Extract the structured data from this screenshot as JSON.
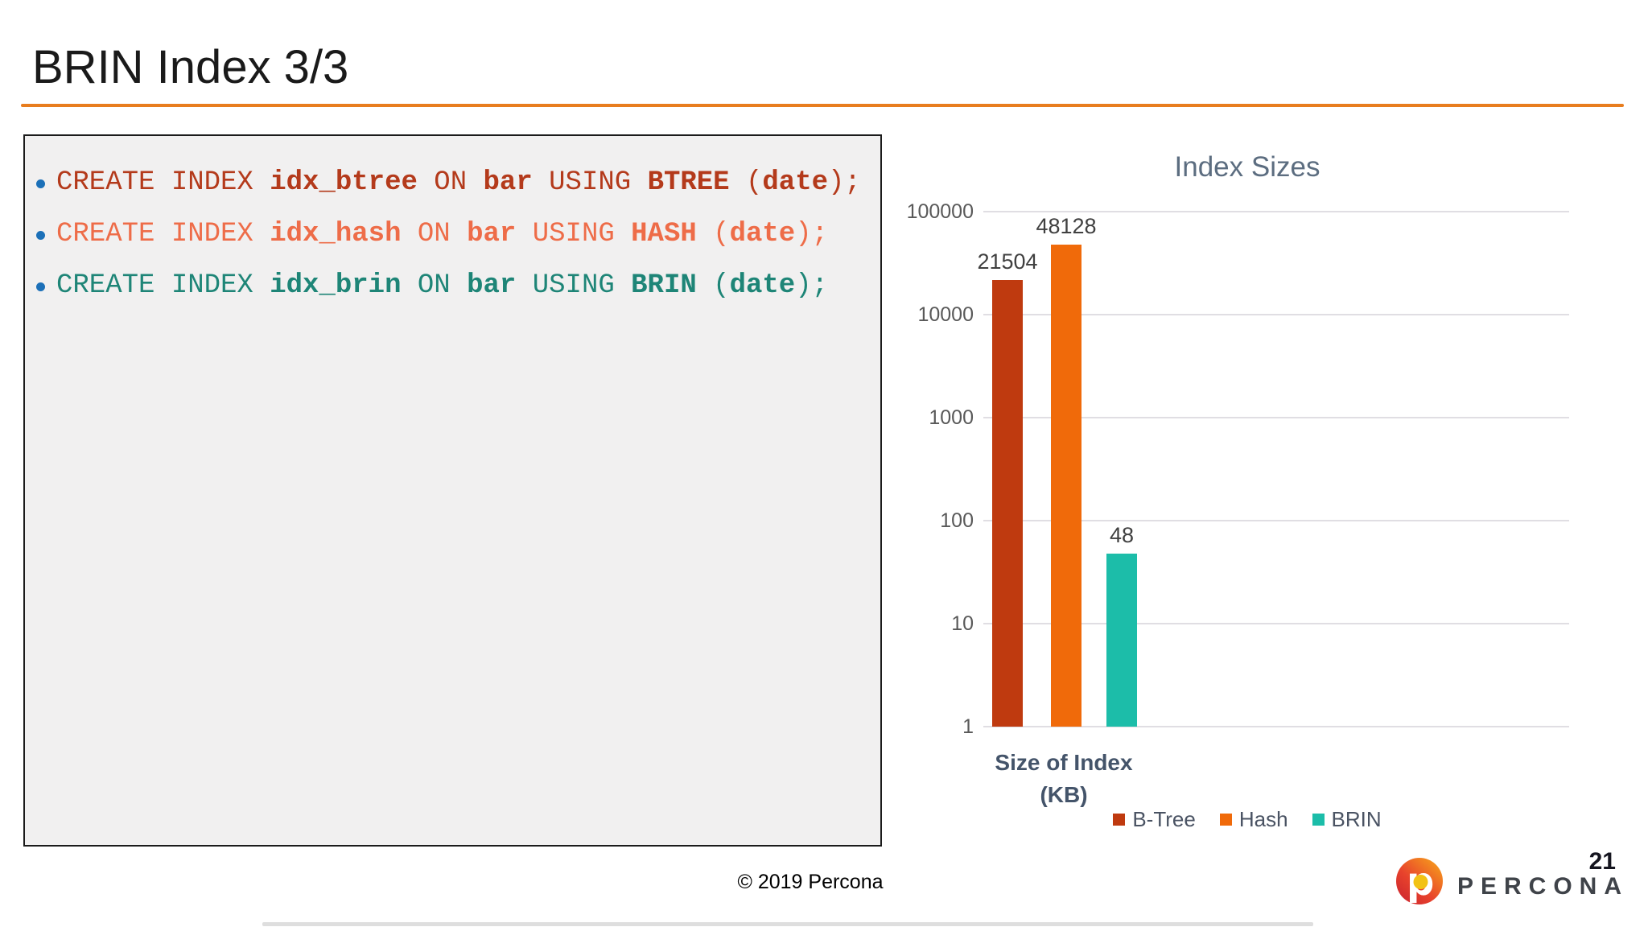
{
  "slide": {
    "title": "BRIN Index 3/3",
    "accent_color": "#E87D1E",
    "copyright": "© 2019 Percona",
    "page_number": "21"
  },
  "code_box": {
    "bullet_color": "#1C70B8",
    "lines": [
      {
        "color": "#B43A1B",
        "segments": [
          {
            "t": "CREATE INDEX ",
            "b": false
          },
          {
            "t": "idx_btree",
            "b": true
          },
          {
            "t": " ON ",
            "b": false
          },
          {
            "t": "bar",
            "b": true
          },
          {
            "t": " USING ",
            "b": false
          },
          {
            "t": "BTREE",
            "b": true
          },
          {
            "t": " (",
            "b": false
          },
          {
            "t": "date",
            "b": true
          },
          {
            "t": ");",
            "b": false
          }
        ]
      },
      {
        "color": "#EE6C48",
        "segments": [
          {
            "t": "CREATE INDEX ",
            "b": false
          },
          {
            "t": "idx_hash",
            "b": true
          },
          {
            "t": " ON ",
            "b": false
          },
          {
            "t": "bar",
            "b": true
          },
          {
            "t": " USING ",
            "b": false
          },
          {
            "t": "HASH",
            "b": true
          },
          {
            "t": " (",
            "b": false
          },
          {
            "t": "date",
            "b": true
          },
          {
            "t": ");",
            "b": false
          }
        ]
      },
      {
        "color": "#1E8577",
        "segments": [
          {
            "t": "CREATE INDEX ",
            "b": false
          },
          {
            "t": "idx_brin",
            "b": true
          },
          {
            "t": " ON ",
            "b": false
          },
          {
            "t": "bar",
            "b": true
          },
          {
            "t": " USING ",
            "b": false
          },
          {
            "t": "BRIN",
            "b": true
          },
          {
            "t": " (",
            "b": false
          },
          {
            "t": "date",
            "b": true
          },
          {
            "t": ");",
            "b": false
          }
        ]
      }
    ]
  },
  "chart_data": {
    "type": "bar",
    "title": "Index Sizes",
    "categories": [
      "B-Tree",
      "Hash",
      "BRIN"
    ],
    "values": [
      21504,
      48128,
      48
    ],
    "value_labels": [
      "21504",
      "48128",
      "48"
    ],
    "colors": [
      "#BF3A0F",
      "#F06A0A",
      "#1CBDA9"
    ],
    "y_scale": "log",
    "ylim": [
      1,
      100000
    ],
    "y_ticks": [
      100000,
      10000,
      1000,
      100,
      10,
      1
    ],
    "xlabel_lines": [
      "Size of Index",
      "(KB)"
    ],
    "grid": true,
    "legend": [
      "B-Tree",
      "Hash",
      "BRIN"
    ],
    "legend_position": "bottom"
  },
  "brand": {
    "name": "PERCONA",
    "logo_colors": {
      "red": "#C8202F",
      "mid": "#E8432C",
      "orange": "#F7A21B",
      "dot": "#F2C214"
    }
  }
}
